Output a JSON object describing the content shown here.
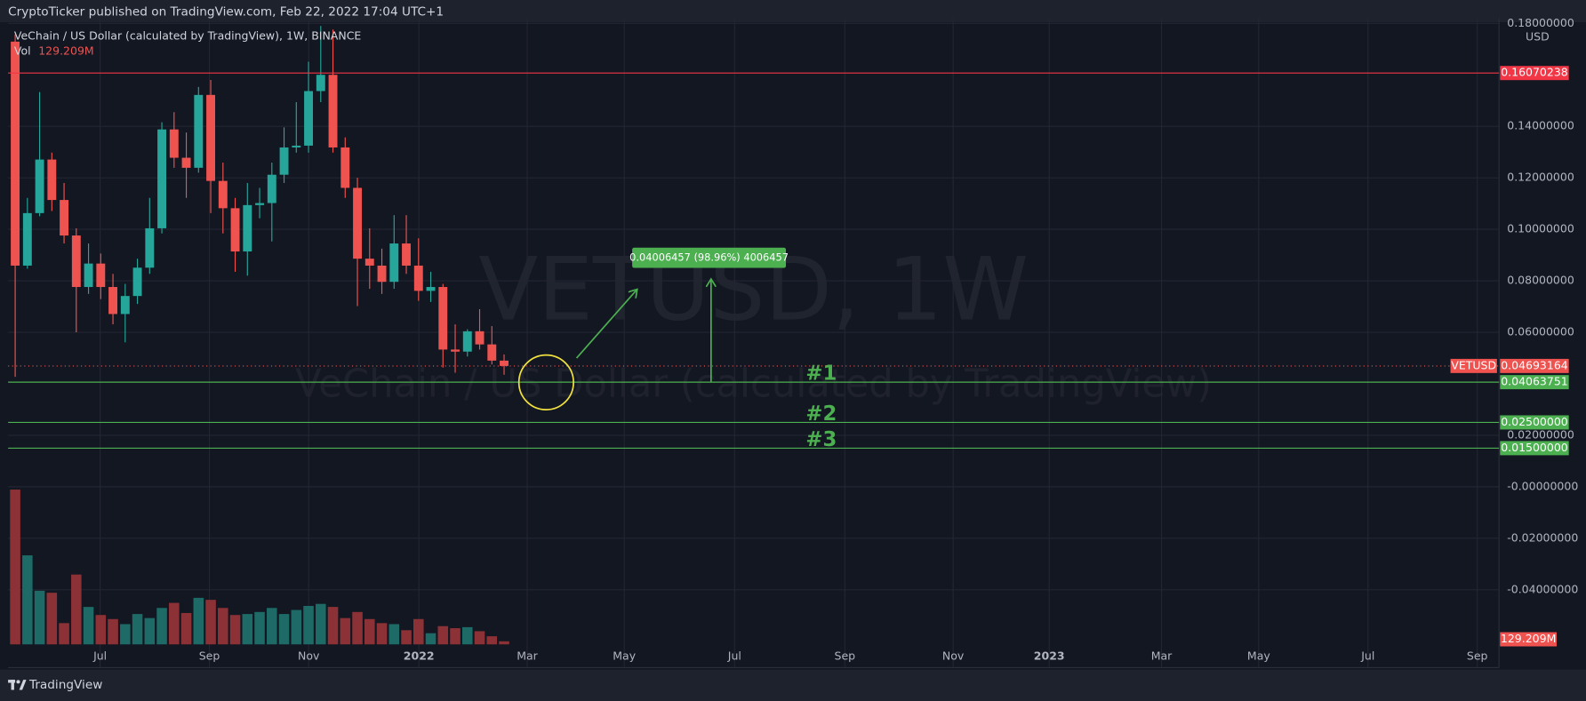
{
  "header": {
    "published": "CryptoTicker published on TradingView.com, Feb 22, 2022 17:04 UTC+1"
  },
  "footer": {
    "brand": "TradingView"
  },
  "chart_data": {
    "type": "candlestick",
    "title": "VeChain / US Dollar (calculated by TradingView), 1W, BINANCE",
    "watermark": "VETUSD, 1W",
    "watermark_subtitle": "VeChain / US Dollar (calculated by TradingView)",
    "y_axis_label": "USD",
    "series": [
      {
        "name": "VETUSD",
        "up_color": "#26a69a",
        "down_color": "#ef5350",
        "open": [
          0.1729,
          0.0859,
          0.1063,
          0.1271,
          0.1114,
          0.0976,
          0.0776,
          0.0867,
          0.0776,
          0.0671,
          0.0741,
          0.0851,
          0.1004,
          0.1388,
          0.1278,
          0.1239,
          0.1522,
          0.1188,
          0.1082,
          0.0914,
          0.1094,
          0.1102,
          0.1212,
          0.1318,
          0.1325,
          0.1537,
          0.16,
          0.1318,
          0.1161,
          0.0886,
          0.0859,
          0.0796,
          0.0945,
          0.0859,
          0.0761,
          0.0776,
          0.0533,
          0.0525,
          0.0604,
          0.0553,
          0.049
        ],
        "high": [
          0.1757,
          0.1122,
          0.1533,
          0.1298,
          0.118,
          0.1004,
          0.0945,
          0.0906,
          0.0827,
          0.0788,
          0.0886,
          0.1122,
          0.1416,
          0.1455,
          0.1376,
          0.1553,
          0.158,
          0.1259,
          0.1122,
          0.118,
          0.1161,
          0.1259,
          0.1396,
          0.1494,
          0.1651,
          0.179,
          0.1776,
          0.1357,
          0.12,
          0.1004,
          0.0925,
          0.1055,
          0.1055,
          0.0965,
          0.0835,
          0.0788,
          0.0631,
          0.0612,
          0.069,
          0.0624,
          0.0514
        ],
        "low": [
          0.0427,
          0.0847,
          0.1051,
          0.1071,
          0.0945,
          0.06,
          0.0749,
          0.0729,
          0.0631,
          0.0561,
          0.071,
          0.0827,
          0.0984,
          0.1239,
          0.1122,
          0.122,
          0.1063,
          0.0984,
          0.0835,
          0.082,
          0.1043,
          0.0953,
          0.118,
          0.1298,
          0.1298,
          0.1494,
          0.1298,
          0.1122,
          0.0702,
          0.0769,
          0.0749,
          0.0769,
          0.0827,
          0.0722,
          0.0718,
          0.0463,
          0.0443,
          0.0506,
          0.0533,
          0.0475,
          0.0435
        ],
        "close": [
          0.0859,
          0.1063,
          0.1271,
          0.1114,
          0.0976,
          0.0776,
          0.0867,
          0.0776,
          0.0671,
          0.0741,
          0.0851,
          0.1004,
          0.1388,
          0.1278,
          0.1239,
          0.1522,
          0.1188,
          0.1082,
          0.0914,
          0.1094,
          0.1102,
          0.1212,
          0.1318,
          0.1325,
          0.1537,
          0.16,
          0.1318,
          0.1161,
          0.0886,
          0.0859,
          0.0796,
          0.0945,
          0.0859,
          0.0761,
          0.0776,
          0.0533,
          0.0525,
          0.0604,
          0.0553,
          0.049,
          0.04693164
        ]
      }
    ],
    "volume": {
      "name": "Vol",
      "value_label": "129.209M",
      "up_color": "#1d6a66",
      "down_color": "#8c3236",
      "values": [
        6590,
        3790,
        2283,
        2197,
        904,
        2972,
        1594,
        1249,
        1077,
        861,
        1292,
        1120,
        1550,
        1766,
        1335,
        1981,
        1895,
        1550,
        1249,
        1292,
        1378,
        1550,
        1292,
        1464,
        1637,
        1723,
        1594,
        1120,
        1378,
        1077,
        904,
        861,
        603,
        1077,
        474,
        775,
        689,
        732,
        560,
        345,
        129.209
      ]
    },
    "ylim": [
      -0.0616,
      0.182
    ],
    "yticks": [
      {
        "value": 0.18,
        "label": "0.18000000"
      },
      {
        "value": 0.14,
        "label": "0.14000000"
      },
      {
        "value": 0.12,
        "label": "0.12000000"
      },
      {
        "value": 0.1,
        "label": "0.10000000"
      },
      {
        "value": 0.08,
        "label": "0.08000000"
      },
      {
        "value": 0.06,
        "label": "0.06000000"
      },
      {
        "value": 0.02,
        "label": "0.02000000"
      },
      {
        "value": 0,
        "label": "-0.00000000"
      },
      {
        "value": -0.02,
        "label": "-0.02000000"
      },
      {
        "value": -0.04,
        "label": "-0.04000000"
      }
    ],
    "xlim": [
      -0.58,
      121.4
    ],
    "xticks": [
      {
        "value": 6.95,
        "label": "Jul"
      },
      {
        "value": 15.89,
        "label": "Sep"
      },
      {
        "value": 24.01,
        "label": "Nov"
      },
      {
        "value": 33.03,
        "label": "2022"
      },
      {
        "value": 41.89,
        "label": "Mar"
      },
      {
        "value": 49.83,
        "label": "May"
      },
      {
        "value": 58.86,
        "label": "Jul"
      },
      {
        "value": 67.88,
        "label": "Sep"
      },
      {
        "value": 76.74,
        "label": "Nov"
      },
      {
        "value": 84.6,
        "label": "2023"
      },
      {
        "value": 93.79,
        "label": "Mar"
      },
      {
        "value": 101.74,
        "label": "May"
      },
      {
        "value": 110.68,
        "label": "Jul"
      },
      {
        "value": 119.62,
        "label": "Sep"
      }
    ],
    "grid": true,
    "last_price": 0.04693164,
    "levels": [
      {
        "price": 0.16070238,
        "color": "#f23645"
      },
      {
        "price": 0.04063751,
        "color": "#4caf50",
        "name": "#1"
      },
      {
        "price": {
          "value": 0.025,
          "label": "0.02500000"
        },
        "color": "#4caf50",
        "name": "#2"
      },
      {
        "price": {
          "value": 0.015,
          "label": "0.01500000"
        },
        "color": "#4caf50",
        "name": "#3"
      }
    ],
    "measure": {
      "label": "0.04006457 (98.96%) 4006457",
      "change": 0.04006457,
      "color": "#4caf50"
    }
  }
}
